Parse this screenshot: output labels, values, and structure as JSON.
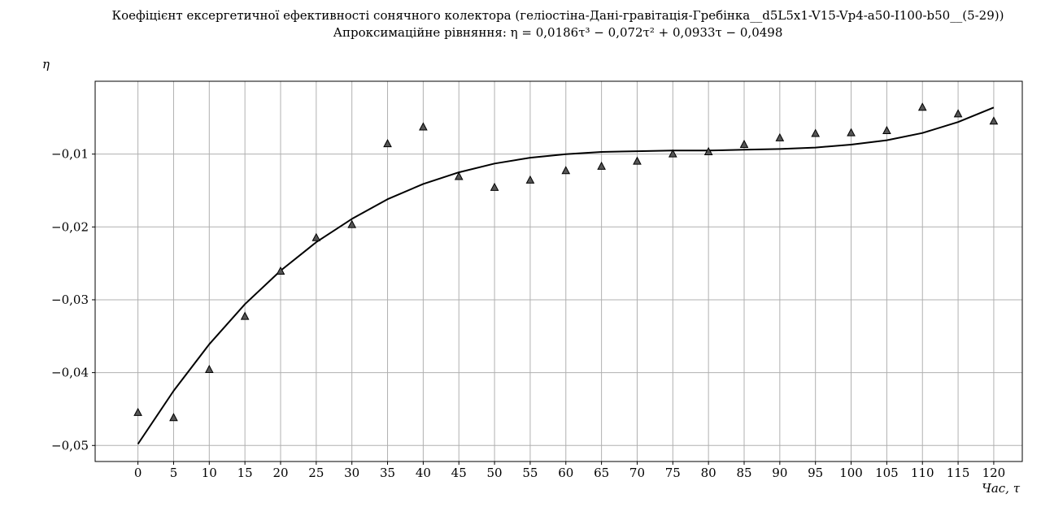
{
  "chart_data": {
    "type": "scatter+line",
    "title": "Коефіцієнт ексергетичної ефективності сонячного колектора (геліостіна-Дані-гравітація-Гребінка__d5L5x1-V15-Vp4-a50-I100-b50__(5-29))",
    "subtitle": "Апроксимаційне рівняння: η = 0,0186τ³ − 0,072τ² + 0,0933τ − 0,0498",
    "ylabel": "η",
    "xlabel": "Час, τ",
    "x_ticks": [
      0,
      5,
      10,
      15,
      20,
      25,
      30,
      35,
      40,
      45,
      50,
      55,
      60,
      65,
      70,
      75,
      80,
      85,
      90,
      95,
      100,
      105,
      110,
      115,
      120
    ],
    "y_ticks": [
      -0.05,
      -0.04,
      -0.03,
      -0.02,
      -0.01
    ],
    "y_tick_labels": [
      "−0,05",
      "−0,04",
      "−0,03",
      "−0,02",
      "−0,01"
    ],
    "xlim": [
      -6,
      124
    ],
    "ylim": [
      -0.0522,
      0.0
    ],
    "grid": true,
    "series": [
      {
        "kind": "markers",
        "marker": "triangle",
        "color": "#555555",
        "x": [
          0,
          5,
          10,
          15,
          20,
          25,
          30,
          35,
          40,
          45,
          50,
          55,
          60,
          65,
          70,
          75,
          80,
          85,
          90,
          95,
          100,
          105,
          110,
          115,
          120
        ],
        "y": [
          -0.0455,
          -0.0462,
          -0.0396,
          -0.0323,
          -0.0261,
          -0.0215,
          -0.0197,
          -0.0086,
          -0.0063,
          -0.0131,
          -0.0146,
          -0.0136,
          -0.0123,
          -0.0117,
          -0.011,
          -0.01,
          -0.0097,
          -0.0087,
          -0.0078,
          -0.0072,
          -0.0071,
          -0.0068,
          -0.0036,
          -0.0045,
          -0.0055
        ]
      },
      {
        "kind": "line",
        "color": "#000000",
        "x": [
          0,
          5,
          10,
          15,
          20,
          25,
          30,
          35,
          40,
          45,
          50,
          55,
          60,
          65,
          70,
          75,
          80,
          85,
          90,
          95,
          100,
          105,
          110,
          115,
          120
        ],
        "y": [
          -0.0498,
          -0.0425,
          -0.0361,
          -0.0306,
          -0.026,
          -0.0221,
          -0.0189,
          -0.0162,
          -0.0141,
          -0.0125,
          -0.0113,
          -0.0105,
          -0.01,
          -0.0097,
          -0.0096,
          -0.0095,
          -0.0095,
          -0.0094,
          -0.0093,
          -0.0091,
          -0.0087,
          -0.0081,
          -0.0071,
          -0.0056,
          -0.0036
        ]
      }
    ]
  }
}
